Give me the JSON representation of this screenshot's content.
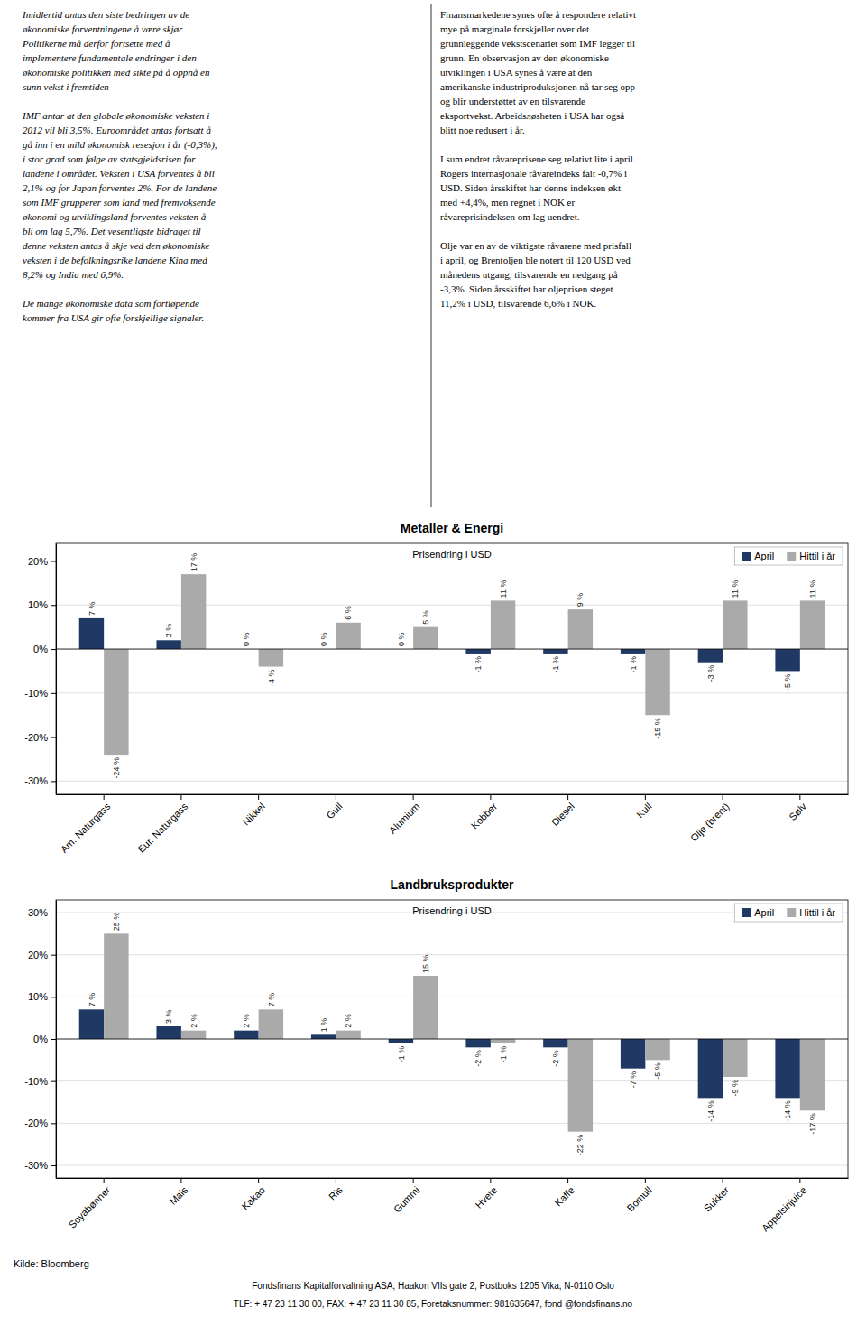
{
  "chart_data": [
    {
      "type": "bar",
      "title": "Metaller & Energi",
      "subtitle": "Prisendring i USD",
      "categories": [
        "Am. Naturgass",
        "Eur. Naturgass",
        "Nikkel",
        "Gull",
        "Alumium",
        "Kobber",
        "Diesel",
        "Kull",
        "Olje (brent)",
        "Sølv"
      ],
      "series": [
        {
          "name": "April",
          "color": "#1F3864",
          "values": [
            7,
            2,
            0,
            0,
            0,
            -1,
            -1,
            -1,
            -3,
            -5
          ],
          "value_labels": [
            "7 %",
            "2 %",
            "0 %",
            "0 %",
            "0 %",
            "-1 %",
            "-1 %",
            "-1 %",
            "-3 %",
            "-5 %"
          ]
        },
        {
          "name": "Hittil i år",
          "color": "#AAAAAA",
          "values": [
            -24,
            17,
            -4,
            6,
            5,
            11,
            9,
            -15,
            11,
            11
          ],
          "value_labels": [
            "-24 %",
            "17 %",
            "-4 %",
            "6 %",
            "5 %",
            "11 %",
            "9 %",
            "-15 %",
            "11 %",
            "11 %"
          ]
        }
      ],
      "ylim": [
        -33,
        24
      ],
      "yticks": [
        {
          "value": -30,
          "label": "-30%"
        },
        {
          "value": -20,
          "label": "-20%"
        },
        {
          "value": -10,
          "label": "-10%"
        },
        {
          "value": 0,
          "label": "0%"
        },
        {
          "value": 10,
          "label": "10%"
        },
        {
          "value": 20,
          "label": "20%"
        }
      ],
      "grid": true,
      "legend": "upper right",
      "data_labels": true
    },
    {
      "type": "bar",
      "title": "Landbruksprodukter",
      "subtitle": "Prisendring i USD",
      "categories": [
        "Soyabønner",
        "Mais",
        "Kakao",
        "Ris",
        "Gummi",
        "Hvete",
        "Kaffe",
        "Bomull",
        "Sukker",
        "Appelsinjuice"
      ],
      "series": [
        {
          "name": "April",
          "color": "#1F3864",
          "values": [
            7,
            3,
            2,
            1,
            -1,
            -2,
            -2,
            -7,
            -14,
            -14
          ],
          "value_labels": [
            "7 %",
            "3 %",
            "2 %",
            "1 %",
            "-1 %",
            "-2 %",
            "-2 %",
            "-7 %",
            "-14 %",
            "-14 %"
          ]
        },
        {
          "name": "Hittil i år",
          "color": "#AAAAAA",
          "values": [
            25,
            2,
            7,
            2,
            15,
            -1,
            -22,
            -5,
            -9,
            -17
          ],
          "value_labels": [
            "25 %",
            "2 %",
            "7 %",
            "2 %",
            "15 %",
            "-1 %",
            "-22 %",
            "-5 %",
            "-9 %",
            "-17 %"
          ]
        }
      ],
      "ylim": [
        -33,
        33
      ],
      "yticks": [
        {
          "value": -30,
          "label": "-30%"
        },
        {
          "value": -20,
          "label": "-20%"
        },
        {
          "value": -10,
          "label": "-10%"
        },
        {
          "value": 0,
          "label": "0%"
        },
        {
          "value": 10,
          "label": "10%"
        },
        {
          "value": 20,
          "label": "20%"
        },
        {
          "value": 30,
          "label": "30%"
        }
      ],
      "grid": true,
      "legend": "upper right",
      "data_labels": true
    }
  ],
  "text_left": "Imidlertid antas den siste bedringen av de\nøkonomiske forventningene å være skjør.\nPolitikerne må derfor fortsette med å\nimplementere fundamentale endringer i den\nøkonomiske politikken med sikte på å oppnå en\nsunn vekst i fremtiden\n\nIMF antar at den globale økonomiske veksten i\n2012 vil bli 3,5%. Euroområdet antas fortsatt å\ngå inn i en mild økonomisk resesjon i år (-0,3%),\ni stor grad som følge av statsgjeldsrisen for\nlandene i området. Veksten i USA forventes å bli\n2,1% og for Japan forventes 2%. For de landene\nsom IMF grupperer som land med fremvoksende\nøkonomi og utviklingsland forventes veksten å\nbli om lag 5,7%. Det vesentligste bidraget til\ndenne veksten antas å skje ved den økonomiske\nveksten i de befolkningsrike landene Kina med\n8,2% og India med 6,9%.\n\nDe mange økonomiske data som fortløpende\nkommer fra USA gir ofte forskjellige signaler.",
  "text_right": "Finansmarkedene synes ofte å respondere relativt\nmye på marginale forskjeller over det\ngrunnleggende vekstscenariet som IMF legger til\ngrunn. En observasjon av den økonomiske\nutviklingen i USA synes å være at den\namerikanske industriproduksjonen nå tar seg opp\nog blir understøttet av en tilsvarende\neksportvekst. Arbeidsлøsheten i USA har også\nblitt noe redusert i år.\n\nI sum endret råvareprisene seg relativt lite i april.\nRogers internasjonale råvareindeks falt -0,7% i\nUSD. Siden årsskiftet har denne indeksen økt\nmed +4,4%, men regnet i NOK er\nråvareprisindeksen om lag uendret.\n\nOlje var en av de viktigste råvarene med prisfall\ni april, og Brentoljen ble notert til 120 USD ved\nmånedens utgang, tilsvarende en nedgang på\n-3,3%. Siden årsskiftet har oljeprisen steget\n11,2% i USD, tilsvarende 6,6% i NOK.",
  "source": "Kilde: Bloomberg",
  "footer": [
    "Fondsfinans Kapitalforvaltning ASA, Haakon VIIs gate 2, Postboks 1205 Vika, N-0110 Oslo",
    "TLF: + 47 23 11 30 00, FAX: + 47 23 11 30 85, Foretaksnummer: 981635647, fond @fondsfinans.no"
  ]
}
